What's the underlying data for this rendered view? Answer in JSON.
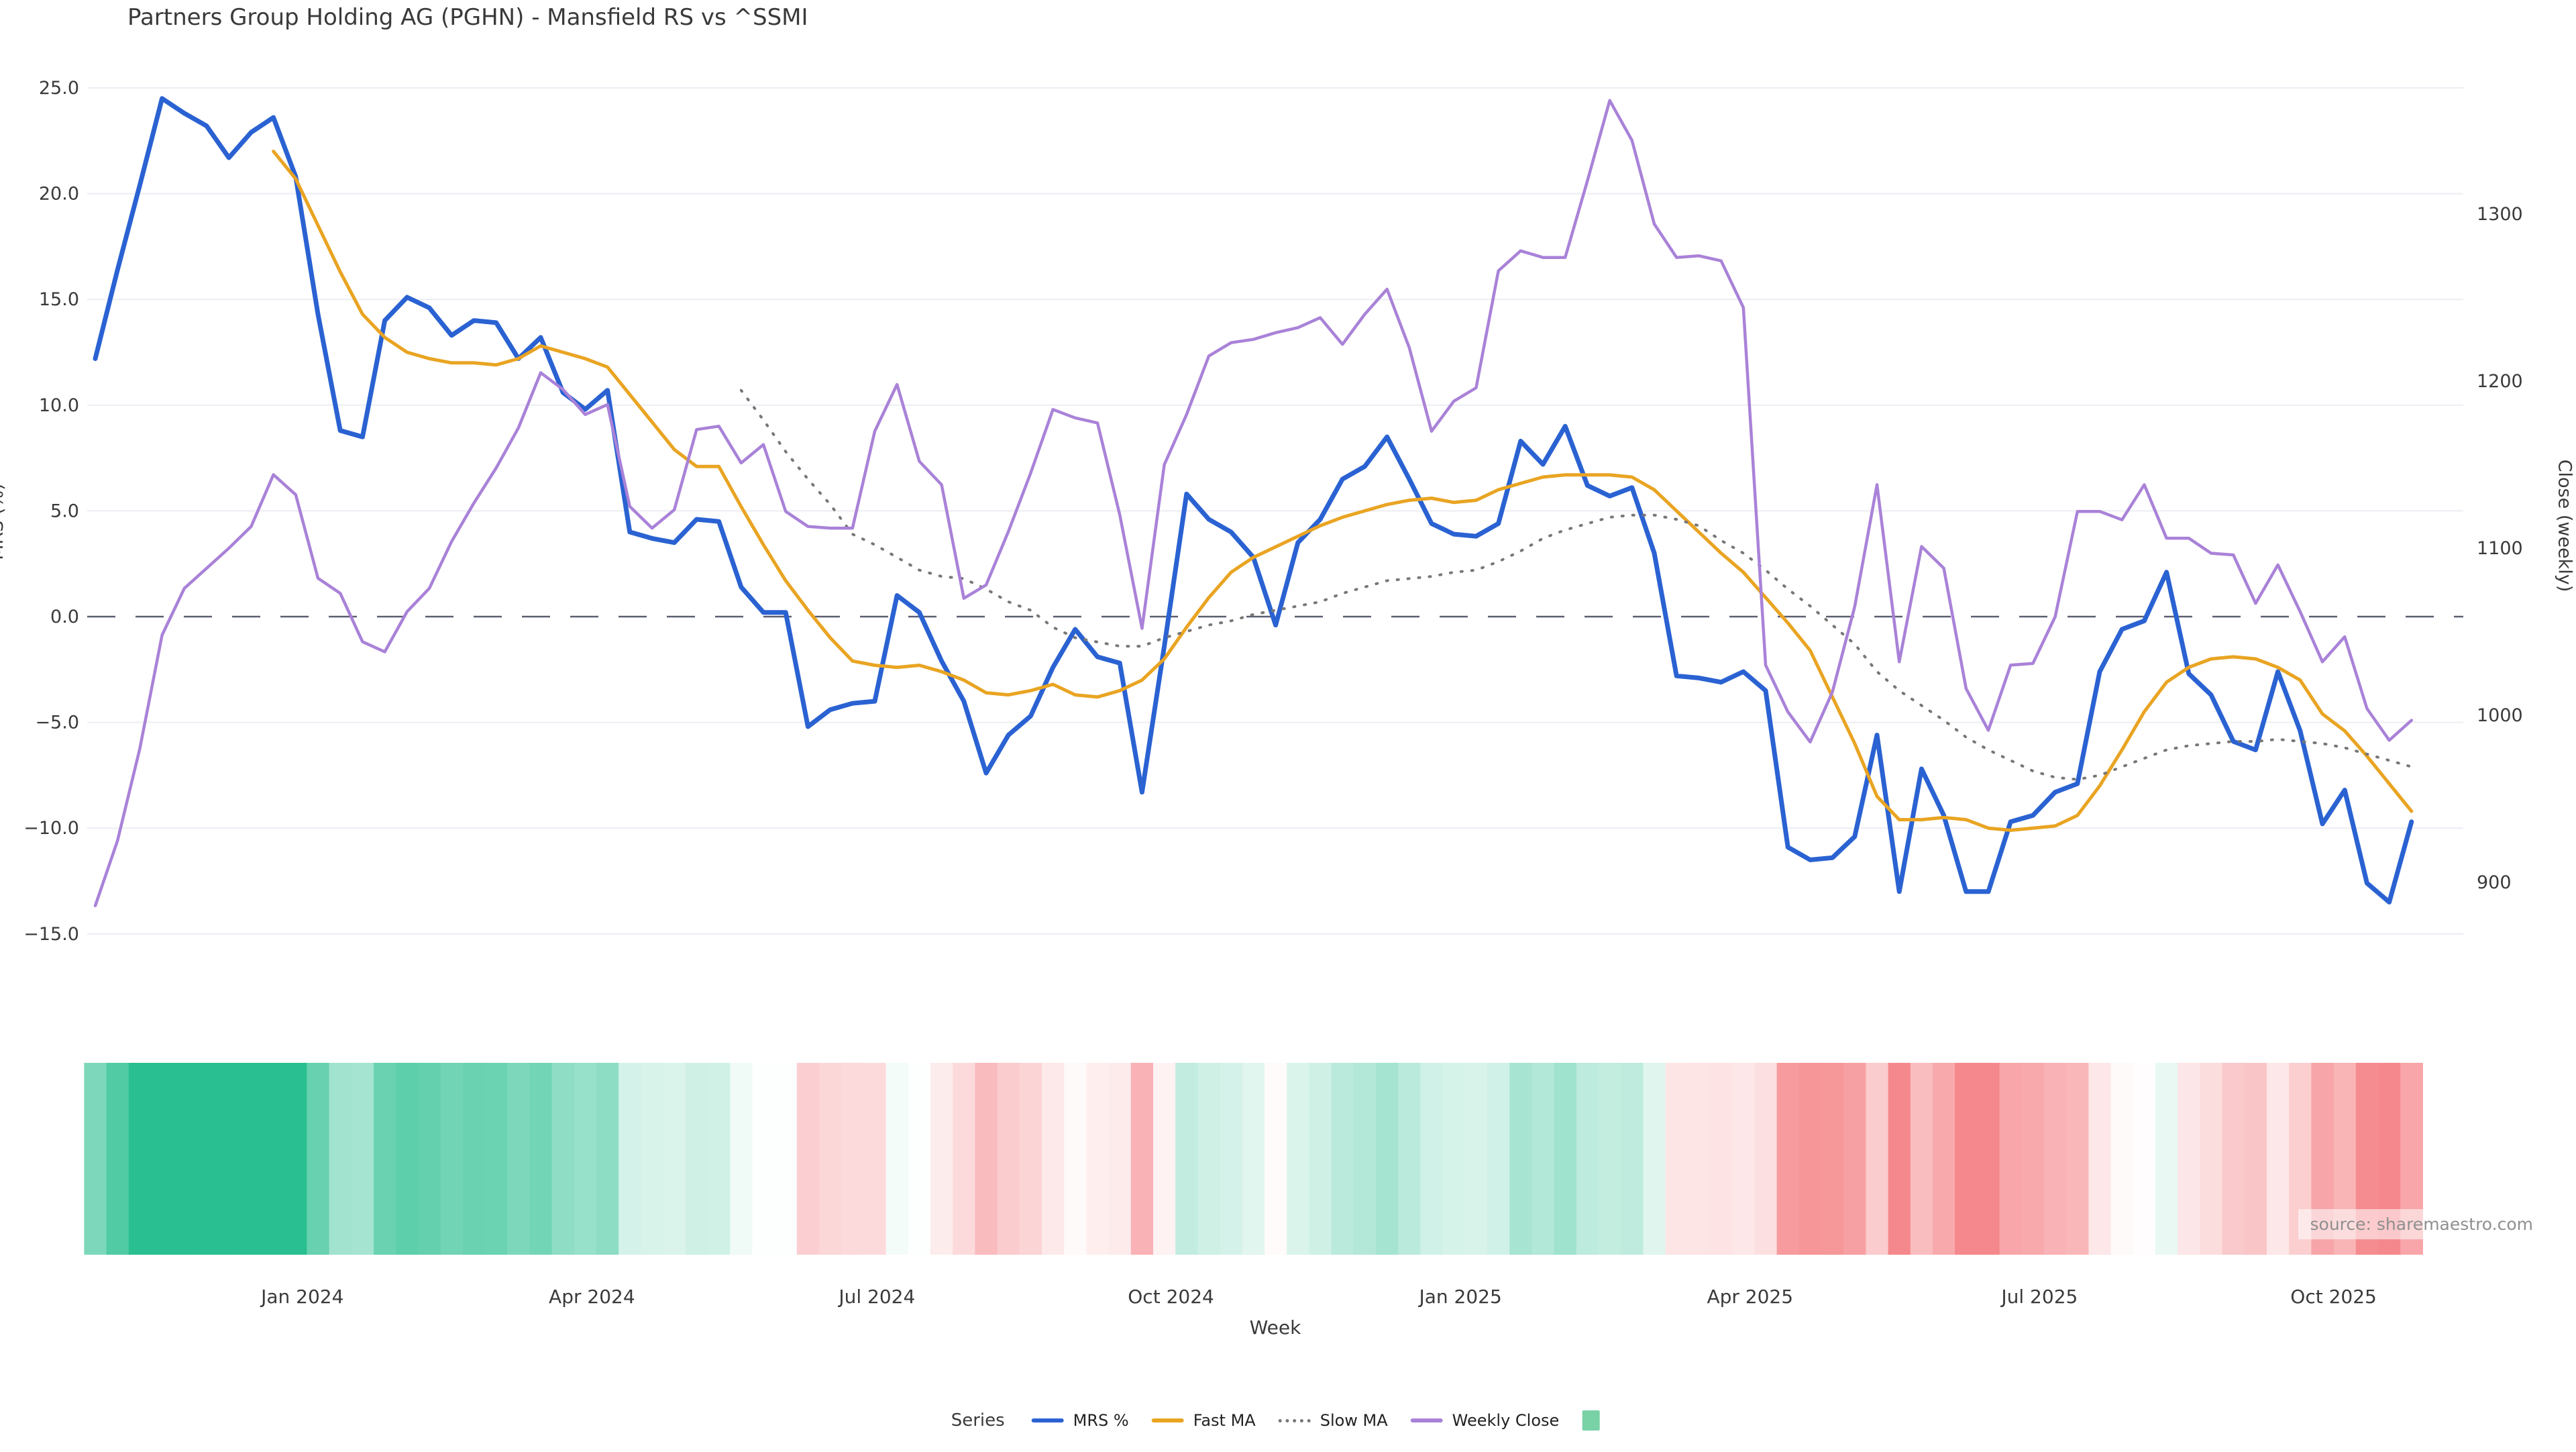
{
  "title": "Partners Group Holding AG (PGHN) - Mansfield RS vs ^SSMI",
  "source": "source: sharemaestro.com",
  "axes": {
    "x_label": "Week",
    "y_left_label": "MRS (%)",
    "y_right_label": "Close (weekly)",
    "y_left_ticks": [
      {
        "label": "25.0",
        "value": 25
      },
      {
        "label": "20.0",
        "value": 20
      },
      {
        "label": "15.0",
        "value": 15
      },
      {
        "label": "10.0",
        "value": 10
      },
      {
        "label": "5.0",
        "value": 5
      },
      {
        "label": "0.0",
        "value": 0
      },
      {
        "label": "−5.0",
        "value": -5
      },
      {
        "label": "−10.0",
        "value": -10
      },
      {
        "label": "−15.0",
        "value": -15
      }
    ],
    "y_right_ticks": [
      {
        "label": "1300",
        "value": 1300
      },
      {
        "label": "1200",
        "value": 1200
      },
      {
        "label": "1100",
        "value": 1100
      },
      {
        "label": "1000",
        "value": 1000
      },
      {
        "label": "900",
        "value": 900
      }
    ],
    "x_ticks": [
      {
        "label": "Jan 2024",
        "week": 9.3
      },
      {
        "label": "Apr 2024",
        "week": 22.3
      },
      {
        "label": "Jul 2024",
        "week": 35.1
      },
      {
        "label": "Oct 2024",
        "week": 48.3
      },
      {
        "label": "Jan 2025",
        "week": 61.3
      },
      {
        "label": "Apr 2025",
        "week": 74.3
      },
      {
        "label": "Jul 2025",
        "week": 87.3
      },
      {
        "label": "Oct 2025",
        "week": 100.5
      }
    ]
  },
  "legend": {
    "series_label": "Series",
    "items": [
      {
        "label": "MRS %",
        "swatch": "line",
        "color_key": "mrs"
      },
      {
        "label": "Fast MA",
        "swatch": "line",
        "color_key": "fast_ma"
      },
      {
        "label": "Slow MA",
        "swatch": "dotted",
        "color_key": "slow_ma"
      },
      {
        "label": "Weekly Close",
        "swatch": "line",
        "color_key": "weekly_close"
      },
      {
        "label": "",
        "swatch": "square",
        "color_key": "heatmap_legend"
      }
    ]
  },
  "colors": {
    "mrs": "#2a62d2",
    "fast_ma": "#e9a422",
    "slow_ma": "#777777",
    "weekly_close": "#a982d8",
    "heatmap_legend": "#79d1a6",
    "heatmap_green_max": "#2abf90",
    "heatmap_red_max": "#f5888c",
    "grid": "#ecedf3",
    "zero_line": "#5a5e70",
    "tick_text": "#3a3a3a"
  },
  "chart_data": {
    "type": "line",
    "x_unit": "week_index",
    "x_range": [
      0,
      104
    ],
    "y_left_range": [
      -15,
      25
    ],
    "y_right_range": [
      860,
      1380
    ],
    "grid": true,
    "zero_line_dashed": true,
    "legend_position": "bottom-center",
    "series": [
      {
        "name": "MRS %",
        "axis": "left",
        "style": "solid",
        "width": 7,
        "color_key": "mrs",
        "start_week": 0,
        "values": [
          12.2,
          16.4,
          20.4,
          24.5,
          23.8,
          23.2,
          21.7,
          22.9,
          23.6,
          20.8,
          14.3,
          8.8,
          8.5,
          14.0,
          15.1,
          14.6,
          13.3,
          14.0,
          13.9,
          12.2,
          13.2,
          10.6,
          9.8,
          10.7,
          4.0,
          3.7,
          3.5,
          4.6,
          4.5,
          1.4,
          0.2,
          0.2,
          -5.2,
          -4.4,
          -4.1,
          -4.0,
          1.0,
          0.2,
          -2.1,
          -4.0,
          -7.4,
          -5.6,
          -4.7,
          -2.4,
          -0.6,
          -1.9,
          -2.2,
          -8.3,
          -1.4,
          5.8,
          4.6,
          4.0,
          2.8,
          -0.4,
          3.5,
          4.6,
          6.5,
          7.1,
          8.5,
          6.5,
          4.4,
          3.9,
          3.8,
          4.4,
          8.3,
          7.2,
          9.0,
          6.2,
          5.7,
          6.1,
          3.0,
          -2.8,
          -2.9,
          -3.1,
          -2.6,
          -3.5,
          -10.9,
          -11.5,
          -11.4,
          -10.4,
          -5.6,
          -13.0,
          -7.2,
          -9.4,
          -13.0,
          -13.0,
          -9.7,
          -9.4,
          -8.3,
          -7.9,
          -2.6,
          -0.6,
          -0.2,
          2.1,
          -2.7,
          -3.7,
          -5.9,
          -6.3,
          -2.6,
          -5.4,
          -9.8,
          -8.2,
          -12.6,
          -13.5,
          -9.7
        ]
      },
      {
        "name": "Fast MA",
        "axis": "left",
        "style": "solid",
        "width": 5,
        "color_key": "fast_ma",
        "start_week": 8,
        "values": [
          22.0,
          20.7,
          18.5,
          16.3,
          14.3,
          13.2,
          12.5,
          12.2,
          12.0,
          12.0,
          11.9,
          12.2,
          12.8,
          12.5,
          12.2,
          11.8,
          10.5,
          9.2,
          7.9,
          7.1,
          7.1,
          5.2,
          3.4,
          1.7,
          0.3,
          -1.0,
          -2.1,
          -2.3,
          -2.4,
          -2.3,
          -2.6,
          -3.0,
          -3.6,
          -3.7,
          -3.5,
          -3.2,
          -3.7,
          -3.8,
          -3.5,
          -3.0,
          -2.0,
          -0.5,
          0.9,
          2.1,
          2.8,
          3.3,
          3.8,
          4.3,
          4.7,
          5.0,
          5.3,
          5.5,
          5.6,
          5.4,
          5.5,
          6.0,
          6.3,
          6.6,
          6.7,
          6.7,
          6.7,
          6.6,
          6.0,
          5.0,
          4.0,
          3.0,
          2.1,
          0.9,
          -0.3,
          -1.6,
          -3.8,
          -6.0,
          -8.5,
          -9.6,
          -9.6,
          -9.5,
          -9.6,
          -10.0,
          -10.1,
          -10.0,
          -9.9,
          -9.4,
          -8.0,
          -6.3,
          -4.5,
          -3.1,
          -2.4,
          -2.0,
          -1.9,
          -2.0,
          -2.4,
          -3.0,
          -4.6,
          -5.4,
          -6.6,
          -7.9,
          -9.2
        ]
      },
      {
        "name": "Slow MA",
        "axis": "left",
        "style": "dotted",
        "width": 4,
        "color_key": "slow_ma",
        "start_week": 29,
        "values": [
          10.7,
          9.3,
          7.8,
          6.5,
          5.3,
          3.9,
          3.4,
          2.8,
          2.2,
          1.9,
          1.8,
          1.3,
          0.7,
          0.3,
          -0.5,
          -1.0,
          -1.2,
          -1.4,
          -1.4,
          -1.0,
          -0.7,
          -0.4,
          -0.2,
          0.1,
          0.3,
          0.5,
          0.7,
          1.1,
          1.4,
          1.7,
          1.8,
          1.9,
          2.1,
          2.2,
          2.6,
          3.1,
          3.7,
          4.1,
          4.4,
          4.7,
          4.8,
          4.8,
          4.6,
          4.3,
          3.6,
          3.0,
          2.2,
          1.3,
          0.5,
          -0.4,
          -1.3,
          -2.6,
          -3.5,
          -4.2,
          -4.9,
          -5.7,
          -6.3,
          -6.8,
          -7.3,
          -7.6,
          -7.7,
          -7.5,
          -7.1,
          -6.7,
          -6.3,
          -6.1,
          -6.0,
          -5.9,
          -5.9,
          -5.8,
          -5.9,
          -6.0,
          -6.2,
          -6.5,
          -6.8,
          -7.1
        ]
      },
      {
        "name": "Weekly Close",
        "axis": "right",
        "style": "solid",
        "width": 4.5,
        "color_key": "weekly_close",
        "start_week": 0,
        "values": [
          886,
          925,
          980,
          1048,
          1076,
          1088,
          1100,
          1113,
          1144,
          1132,
          1082,
          1073,
          1044,
          1038,
          1062,
          1076,
          1104,
          1127,
          1148,
          1172,
          1205,
          1195,
          1180,
          1186,
          1125,
          1112,
          1123,
          1171,
          1173,
          1151,
          1162,
          1122,
          1113,
          1112,
          1112,
          1170,
          1198,
          1152,
          1138,
          1070,
          1078,
          1110,
          1145,
          1183,
          1178,
          1175,
          1120,
          1052,
          1150,
          1180,
          1215,
          1223,
          1225,
          1229,
          1232,
          1238,
          1222,
          1240,
          1255,
          1220,
          1170,
          1188,
          1196,
          1266,
          1278,
          1274,
          1274,
          1320,
          1368,
          1344,
          1294,
          1274,
          1275,
          1272,
          1244,
          1030,
          1002,
          984,
          1014,
          1065,
          1138,
          1032,
          1101,
          1088,
          1016,
          991,
          1030,
          1031,
          1059,
          1122,
          1122,
          1117,
          1138,
          1106,
          1106,
          1097,
          1096,
          1067,
          1090,
          1062,
          1032,
          1047,
          1004,
          985,
          997
        ]
      }
    ],
    "heatmap_strip": {
      "derived_from": "MRS %",
      "positive_cap": 20,
      "negative_cap": 13,
      "cells": 105
    }
  }
}
